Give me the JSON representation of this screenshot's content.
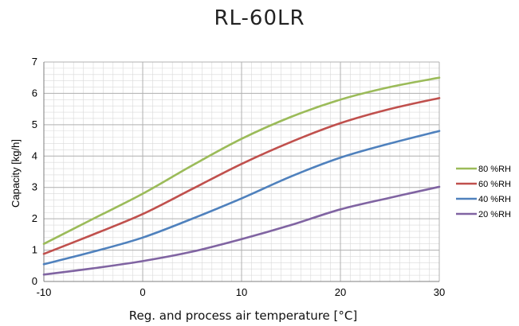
{
  "chart_data": {
    "type": "line",
    "title": "RL-60LR",
    "xlabel": "Reg. and process air temperature [°C]",
    "ylabel": "Capacity [kg/h]",
    "xlim": [
      -10,
      30
    ],
    "ylim": [
      0,
      7
    ],
    "x_ticks": [
      "-10",
      "0",
      "10",
      "20",
      "30"
    ],
    "y_ticks": [
      "0",
      "1",
      "2",
      "3",
      "4",
      "5",
      "6",
      "7"
    ],
    "grid": true,
    "legend_position": "right",
    "x": [
      -10,
      -5,
      0,
      5,
      10,
      15,
      20,
      25,
      30
    ],
    "series": [
      {
        "name": "80 %RH",
        "color": "#9bbb59",
        "values": [
          1.2,
          2.0,
          2.8,
          3.7,
          4.55,
          5.25,
          5.8,
          6.2,
          6.5
        ]
      },
      {
        "name": "60 %RH",
        "color": "#c0504d",
        "values": [
          0.88,
          1.5,
          2.15,
          2.95,
          3.75,
          4.45,
          5.05,
          5.5,
          5.85
        ]
      },
      {
        "name": "40 %RH",
        "color": "#4f81bd",
        "values": [
          0.55,
          0.95,
          1.4,
          2.0,
          2.65,
          3.35,
          3.95,
          4.4,
          4.8
        ]
      },
      {
        "name": "20 %RH",
        "color": "#8064a2",
        "values": [
          0.22,
          0.42,
          0.65,
          0.95,
          1.35,
          1.8,
          2.3,
          2.67,
          3.02
        ]
      }
    ]
  }
}
